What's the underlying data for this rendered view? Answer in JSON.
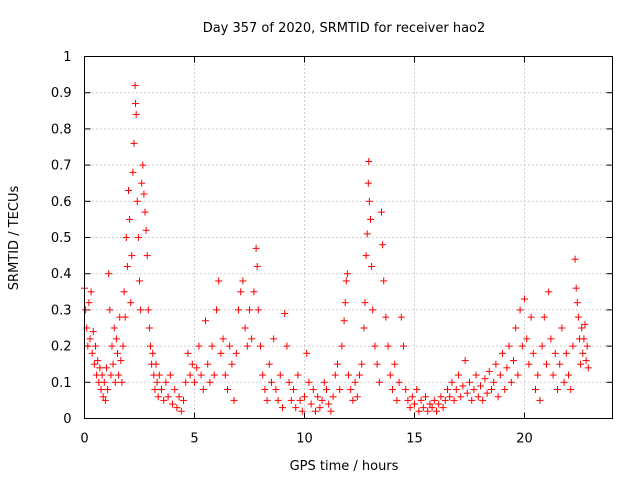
{
  "chart_data": {
    "type": "scatter",
    "title": "Day 357 of 2020, SRMTID for receiver hao2",
    "xlabel": "GPS time / hours",
    "ylabel": "SRMTID / TECUs",
    "xlim": [
      0,
      24
    ],
    "ylim": [
      0,
      1
    ],
    "xticks": [
      0,
      5,
      10,
      15,
      20
    ],
    "xtick_labels": [
      "0",
      "5",
      "10",
      "15",
      "20"
    ],
    "yticks": [
      0,
      0.1,
      0.2,
      0.3,
      0.4,
      0.5,
      0.6,
      0.7,
      0.8,
      0.9,
      1
    ],
    "ytick_labels": [
      "0",
      "0.1",
      "0.2",
      "0.3",
      "0.4",
      "0.5",
      "0.6",
      "0.7",
      "0.8",
      "0.9",
      "1"
    ],
    "grid": true,
    "marker": "plus",
    "color": "#ff0000",
    "series": [
      {
        "name": "hao2",
        "points": [
          [
            0.0,
            0.36
          ],
          [
            0.05,
            0.3
          ],
          [
            0.1,
            0.25
          ],
          [
            0.15,
            0.2
          ],
          [
            0.2,
            0.32
          ],
          [
            0.25,
            0.22
          ],
          [
            0.3,
            0.35
          ],
          [
            0.35,
            0.18
          ],
          [
            0.4,
            0.24
          ],
          [
            0.45,
            0.15
          ],
          [
            0.5,
            0.2
          ],
          [
            0.55,
            0.12
          ],
          [
            0.6,
            0.16
          ],
          [
            0.65,
            0.1
          ],
          [
            0.7,
            0.14
          ],
          [
            0.75,
            0.08
          ],
          [
            0.8,
            0.12
          ],
          [
            0.85,
            0.06
          ],
          [
            0.9,
            0.1
          ],
          [
            0.95,
            0.05
          ],
          [
            1.0,
            0.14
          ],
          [
            1.05,
            0.08
          ],
          [
            1.1,
            0.4
          ],
          [
            1.15,
            0.3
          ],
          [
            1.2,
            0.12
          ],
          [
            1.25,
            0.2
          ],
          [
            1.3,
            0.15
          ],
          [
            1.35,
            0.25
          ],
          [
            1.4,
            0.1
          ],
          [
            1.45,
            0.22
          ],
          [
            1.5,
            0.18
          ],
          [
            1.55,
            0.12
          ],
          [
            1.6,
            0.28
          ],
          [
            1.65,
            0.16
          ],
          [
            1.7,
            0.1
          ],
          [
            1.75,
            0.2
          ],
          [
            1.8,
            0.35
          ],
          [
            1.85,
            0.28
          ],
          [
            1.9,
            0.5
          ],
          [
            1.95,
            0.42
          ],
          [
            2.0,
            0.63
          ],
          [
            2.05,
            0.55
          ],
          [
            2.1,
            0.32
          ],
          [
            2.15,
            0.45
          ],
          [
            2.2,
            0.68
          ],
          [
            2.25,
            0.76
          ],
          [
            2.3,
            0.92
          ],
          [
            2.32,
            0.87
          ],
          [
            2.35,
            0.84
          ],
          [
            2.4,
            0.6
          ],
          [
            2.45,
            0.5
          ],
          [
            2.5,
            0.38
          ],
          [
            2.55,
            0.3
          ],
          [
            2.6,
            0.65
          ],
          [
            2.65,
            0.7
          ],
          [
            2.7,
            0.62
          ],
          [
            2.75,
            0.57
          ],
          [
            2.8,
            0.52
          ],
          [
            2.85,
            0.45
          ],
          [
            2.9,
            0.3
          ],
          [
            2.95,
            0.25
          ],
          [
            3.0,
            0.2
          ],
          [
            3.05,
            0.15
          ],
          [
            3.1,
            0.18
          ],
          [
            3.15,
            0.12
          ],
          [
            3.2,
            0.08
          ],
          [
            3.25,
            0.15
          ],
          [
            3.3,
            0.1
          ],
          [
            3.35,
            0.06
          ],
          [
            3.4,
            0.12
          ],
          [
            3.5,
            0.08
          ],
          [
            3.6,
            0.05
          ],
          [
            3.7,
            0.1
          ],
          [
            3.8,
            0.06
          ],
          [
            3.9,
            0.12
          ],
          [
            4.0,
            0.04
          ],
          [
            4.1,
            0.08
          ],
          [
            4.2,
            0.03
          ],
          [
            4.3,
            0.06
          ],
          [
            4.4,
            0.02
          ],
          [
            4.5,
            0.05
          ],
          [
            4.6,
            0.1
          ],
          [
            4.7,
            0.18
          ],
          [
            4.8,
            0.12
          ],
          [
            4.9,
            0.15
          ],
          [
            5.0,
            0.1
          ],
          [
            5.1,
            0.14
          ],
          [
            5.2,
            0.2
          ],
          [
            5.3,
            0.12
          ],
          [
            5.4,
            0.08
          ],
          [
            5.5,
            0.27
          ],
          [
            5.6,
            0.15
          ],
          [
            5.7,
            0.1
          ],
          [
            5.8,
            0.2
          ],
          [
            5.9,
            0.12
          ],
          [
            6.0,
            0.3
          ],
          [
            6.1,
            0.38
          ],
          [
            6.2,
            0.18
          ],
          [
            6.3,
            0.22
          ],
          [
            6.4,
            0.12
          ],
          [
            6.5,
            0.08
          ],
          [
            6.6,
            0.2
          ],
          [
            6.7,
            0.15
          ],
          [
            6.8,
            0.05
          ],
          [
            6.9,
            0.18
          ],
          [
            7.0,
            0.3
          ],
          [
            7.1,
            0.35
          ],
          [
            7.2,
            0.38
          ],
          [
            7.3,
            0.25
          ],
          [
            7.4,
            0.2
          ],
          [
            7.5,
            0.3
          ],
          [
            7.6,
            0.22
          ],
          [
            7.7,
            0.35
          ],
          [
            7.8,
            0.47
          ],
          [
            7.85,
            0.42
          ],
          [
            7.9,
            0.3
          ],
          [
            8.0,
            0.2
          ],
          [
            8.1,
            0.12
          ],
          [
            8.2,
            0.08
          ],
          [
            8.3,
            0.05
          ],
          [
            8.4,
            0.15
          ],
          [
            8.5,
            0.1
          ],
          [
            8.6,
            0.22
          ],
          [
            8.7,
            0.08
          ],
          [
            8.8,
            0.05
          ],
          [
            8.9,
            0.12
          ],
          [
            9.0,
            0.03
          ],
          [
            9.1,
            0.29
          ],
          [
            9.2,
            0.2
          ],
          [
            9.3,
            0.1
          ],
          [
            9.4,
            0.05
          ],
          [
            9.5,
            0.08
          ],
          [
            9.6,
            0.03
          ],
          [
            9.7,
            0.12
          ],
          [
            9.8,
            0.05
          ],
          [
            9.9,
            0.02
          ],
          [
            10.0,
            0.06
          ],
          [
            10.1,
            0.18
          ],
          [
            10.2,
            0.1
          ],
          [
            10.3,
            0.04
          ],
          [
            10.4,
            0.08
          ],
          [
            10.5,
            0.02
          ],
          [
            10.6,
            0.06
          ],
          [
            10.7,
            0.03
          ],
          [
            10.8,
            0.05
          ],
          [
            10.9,
            0.1
          ],
          [
            11.0,
            0.08
          ],
          [
            11.1,
            0.04
          ],
          [
            11.2,
            0.02
          ],
          [
            11.3,
            0.06
          ],
          [
            11.4,
            0.12
          ],
          [
            11.5,
            0.15
          ],
          [
            11.6,
            0.08
          ],
          [
            11.7,
            0.2
          ],
          [
            11.8,
            0.27
          ],
          [
            11.85,
            0.32
          ],
          [
            11.9,
            0.38
          ],
          [
            11.95,
            0.4
          ],
          [
            12.0,
            0.12
          ],
          [
            12.1,
            0.08
          ],
          [
            12.2,
            0.05
          ],
          [
            12.3,
            0.1
          ],
          [
            12.4,
            0.06
          ],
          [
            12.5,
            0.12
          ],
          [
            12.6,
            0.15
          ],
          [
            12.7,
            0.25
          ],
          [
            12.75,
            0.32
          ],
          [
            12.8,
            0.45
          ],
          [
            12.85,
            0.51
          ],
          [
            12.9,
            0.65
          ],
          [
            12.92,
            0.71
          ],
          [
            12.95,
            0.6
          ],
          [
            13.0,
            0.55
          ],
          [
            13.05,
            0.42
          ],
          [
            13.1,
            0.3
          ],
          [
            13.2,
            0.2
          ],
          [
            13.3,
            0.15
          ],
          [
            13.4,
            0.1
          ],
          [
            13.5,
            0.57
          ],
          [
            13.55,
            0.48
          ],
          [
            13.6,
            0.38
          ],
          [
            13.7,
            0.28
          ],
          [
            13.8,
            0.2
          ],
          [
            13.9,
            0.12
          ],
          [
            14.0,
            0.08
          ],
          [
            14.1,
            0.15
          ],
          [
            14.2,
            0.05
          ],
          [
            14.3,
            0.1
          ],
          [
            14.4,
            0.28
          ],
          [
            14.5,
            0.2
          ],
          [
            14.6,
            0.08
          ],
          [
            14.7,
            0.05
          ],
          [
            14.8,
            0.03
          ],
          [
            14.9,
            0.06
          ],
          [
            15.0,
            0.04
          ],
          [
            15.1,
            0.08
          ],
          [
            15.2,
            0.02
          ],
          [
            15.3,
            0.05
          ],
          [
            15.4,
            0.03
          ],
          [
            15.5,
            0.06
          ],
          [
            15.6,
            0.02
          ],
          [
            15.7,
            0.04
          ],
          [
            15.8,
            0.03
          ],
          [
            15.9,
            0.05
          ],
          [
            16.0,
            0.02
          ],
          [
            16.1,
            0.04
          ],
          [
            16.2,
            0.06
          ],
          [
            16.3,
            0.03
          ],
          [
            16.4,
            0.05
          ],
          [
            16.5,
            0.08
          ],
          [
            16.6,
            0.06
          ],
          [
            16.7,
            0.1
          ],
          [
            16.8,
            0.05
          ],
          [
            16.9,
            0.08
          ],
          [
            17.0,
            0.12
          ],
          [
            17.1,
            0.06
          ],
          [
            17.2,
            0.09
          ],
          [
            17.3,
            0.16
          ],
          [
            17.4,
            0.07
          ],
          [
            17.5,
            0.1
          ],
          [
            17.6,
            0.05
          ],
          [
            17.7,
            0.08
          ],
          [
            17.8,
            0.12
          ],
          [
            17.9,
            0.06
          ],
          [
            18.0,
            0.09
          ],
          [
            18.1,
            0.05
          ],
          [
            18.2,
            0.11
          ],
          [
            18.3,
            0.07
          ],
          [
            18.4,
            0.13
          ],
          [
            18.5,
            0.08
          ],
          [
            18.6,
            0.1
          ],
          [
            18.7,
            0.15
          ],
          [
            18.8,
            0.06
          ],
          [
            18.9,
            0.12
          ],
          [
            19.0,
            0.18
          ],
          [
            19.1,
            0.08
          ],
          [
            19.2,
            0.14
          ],
          [
            19.3,
            0.2
          ],
          [
            19.4,
            0.1
          ],
          [
            19.5,
            0.16
          ],
          [
            19.6,
            0.25
          ],
          [
            19.7,
            0.12
          ],
          [
            19.8,
            0.3
          ],
          [
            19.9,
            0.2
          ],
          [
            20.0,
            0.33
          ],
          [
            20.1,
            0.22
          ],
          [
            20.2,
            0.15
          ],
          [
            20.3,
            0.28
          ],
          [
            20.4,
            0.18
          ],
          [
            20.5,
            0.08
          ],
          [
            20.6,
            0.12
          ],
          [
            20.7,
            0.05
          ],
          [
            20.8,
            0.2
          ],
          [
            20.9,
            0.28
          ],
          [
            21.0,
            0.15
          ],
          [
            21.1,
            0.35
          ],
          [
            21.2,
            0.22
          ],
          [
            21.3,
            0.12
          ],
          [
            21.4,
            0.18
          ],
          [
            21.5,
            0.08
          ],
          [
            21.6,
            0.15
          ],
          [
            21.7,
            0.25
          ],
          [
            21.8,
            0.1
          ],
          [
            21.9,
            0.18
          ],
          [
            22.0,
            0.12
          ],
          [
            22.1,
            0.08
          ],
          [
            22.2,
            0.2
          ],
          [
            22.3,
            0.44
          ],
          [
            22.35,
            0.36
          ],
          [
            22.4,
            0.32
          ],
          [
            22.45,
            0.28
          ],
          [
            22.5,
            0.22
          ],
          [
            22.55,
            0.15
          ],
          [
            22.6,
            0.25
          ],
          [
            22.65,
            0.18
          ],
          [
            22.7,
            0.22
          ],
          [
            22.75,
            0.26
          ],
          [
            22.8,
            0.16
          ],
          [
            22.85,
            0.2
          ],
          [
            22.9,
            0.14
          ]
        ]
      }
    ]
  }
}
